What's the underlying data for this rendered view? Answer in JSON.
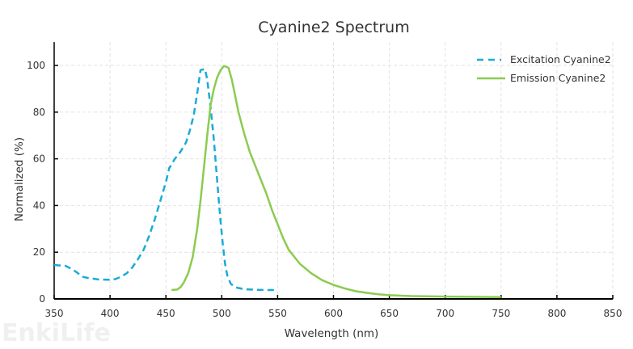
{
  "chart_data": {
    "type": "line",
    "title": "Cyanine2  Spectrum",
    "xlabel": "Wavelength (nm)",
    "ylabel": "Normalized (%)",
    "xlim": [
      350,
      850
    ],
    "ylim": [
      0,
      110
    ],
    "xticks": [
      350,
      400,
      450,
      500,
      550,
      600,
      650,
      700,
      750,
      800,
      850
    ],
    "yticks": [
      0,
      20,
      40,
      60,
      80,
      100
    ],
    "grid": true,
    "legend_position": "top-right",
    "watermark": "EnkiLife",
    "series": [
      {
        "name": "Excitation Cyanine2",
        "color": "#1AABD8",
        "style": "dashed",
        "x": [
          350,
          360,
          365,
          370,
          375,
          380,
          390,
          400,
          405,
          410,
          415,
          420,
          425,
          430,
          435,
          440,
          445,
          450,
          453,
          458,
          463,
          468,
          472,
          475,
          478,
          481,
          485,
          487,
          490,
          493,
          495,
          497,
          499,
          501,
          503,
          505,
          508,
          512,
          520,
          530,
          540,
          550
        ],
        "y": [
          14.5,
          14.2,
          13,
          11.5,
          9.5,
          9,
          8.3,
          8.2,
          8.5,
          9.5,
          11,
          13.5,
          17,
          21,
          27,
          34,
          42,
          50,
          56,
          60,
          63,
          67,
          73,
          79,
          88,
          98,
          98.5,
          94,
          82,
          68,
          56,
          44,
          33,
          23,
          15,
          10,
          6.5,
          5,
          4.2,
          3.9,
          3.8,
          3.8
        ]
      },
      {
        "name": "Emission Cyanine2",
        "color": "#8CCB50",
        "style": "solid",
        "x": [
          455,
          460,
          463,
          466,
          470,
          474,
          478,
          481,
          484,
          487,
          490,
          493,
          496,
          499,
          502,
          506,
          509,
          512,
          515,
          520,
          525,
          530,
          535,
          540,
          545,
          550,
          555,
          560,
          570,
          580,
          590,
          600,
          610,
          620,
          630,
          640,
          650,
          670,
          700,
          750
        ],
        "y": [
          3.8,
          4,
          5,
          7,
          11,
          18,
          30,
          42,
          56,
          70,
          83,
          90,
          95,
          98,
          99.8,
          99,
          94,
          87,
          80,
          71,
          63,
          57,
          51,
          45,
          38,
          32,
          26,
          21,
          15,
          11,
          8,
          6,
          4.5,
          3.3,
          2.6,
          2,
          1.6,
          1.2,
          1.0,
          0.8
        ]
      }
    ]
  }
}
